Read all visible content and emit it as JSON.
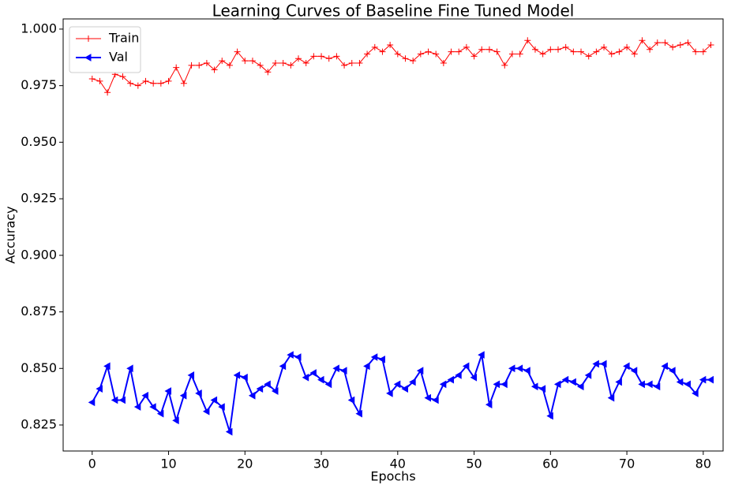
{
  "chart_data": {
    "type": "line",
    "title": "Learning Curves of Baseline Fine Tuned Model",
    "x_label": "Epochs",
    "y_label": "Accuracy",
    "x": [
      0,
      1,
      2,
      3,
      4,
      5,
      6,
      7,
      8,
      9,
      10,
      11,
      12,
      13,
      14,
      15,
      16,
      17,
      18,
      19,
      20,
      21,
      22,
      23,
      24,
      25,
      26,
      27,
      28,
      29,
      30,
      31,
      32,
      33,
      34,
      35,
      36,
      37,
      38,
      39,
      40,
      41,
      42,
      43,
      44,
      45,
      46,
      47,
      48,
      49,
      50,
      51,
      52,
      53,
      54,
      55,
      56,
      57,
      58,
      59,
      60,
      61,
      62,
      63,
      64,
      65,
      66,
      67,
      68,
      69,
      70,
      71,
      72,
      73,
      74,
      75,
      76,
      77,
      78,
      79,
      80,
      81
    ],
    "series": [
      {
        "name": "Train",
        "color": "#ff0000",
        "values": [
          0.978,
          0.977,
          0.972,
          0.98,
          0.979,
          0.976,
          0.975,
          0.977,
          0.976,
          0.976,
          0.977,
          0.983,
          0.976,
          0.984,
          0.984,
          0.985,
          0.982,
          0.986,
          0.984,
          0.99,
          0.986,
          0.986,
          0.984,
          0.981,
          0.985,
          0.985,
          0.984,
          0.987,
          0.985,
          0.988,
          0.988,
          0.987,
          0.988,
          0.984,
          0.985,
          0.985,
          0.989,
          0.992,
          0.99,
          0.993,
          0.989,
          0.987,
          0.986,
          0.989,
          0.99,
          0.989,
          0.985,
          0.99,
          0.99,
          0.992,
          0.988,
          0.991,
          0.991,
          0.99,
          0.984,
          0.989,
          0.989,
          0.995,
          0.991,
          0.989,
          0.991,
          0.991,
          0.992,
          0.99,
          0.99,
          0.988,
          0.99,
          0.992,
          0.989,
          0.99,
          0.992,
          0.989,
          0.995,
          0.991,
          0.994,
          0.994,
          0.992,
          0.993,
          0.994,
          0.99,
          0.99,
          0.993
        ]
      },
      {
        "name": "Val",
        "color": "#0000ff",
        "values": [
          0.835,
          0.841,
          0.851,
          0.836,
          0.836,
          0.85,
          0.833,
          0.838,
          0.833,
          0.83,
          0.84,
          0.827,
          0.838,
          0.847,
          0.839,
          0.831,
          0.836,
          0.833,
          0.822,
          0.847,
          0.846,
          0.838,
          0.841,
          0.843,
          0.84,
          0.851,
          0.856,
          0.855,
          0.846,
          0.848,
          0.845,
          0.843,
          0.85,
          0.849,
          0.836,
          0.83,
          0.851,
          0.855,
          0.854,
          0.839,
          0.843,
          0.841,
          0.844,
          0.849,
          0.837,
          0.836,
          0.843,
          0.845,
          0.847,
          0.851,
          0.846,
          0.856,
          0.834,
          0.843,
          0.843,
          0.85,
          0.85,
          0.849,
          0.842,
          0.841,
          0.829,
          0.843,
          0.845,
          0.844,
          0.842,
          0.847,
          0.852,
          0.852,
          0.837,
          0.844,
          0.851,
          0.849,
          0.843,
          0.843,
          0.842,
          0.851,
          0.849,
          0.844,
          0.843,
          0.839,
          0.845,
          0.845
        ]
      }
    ],
    "xlim": [
      -3.8,
      82.6
    ],
    "ylim": [
      0.8135,
      1.0045
    ],
    "xticks": [
      0,
      10,
      20,
      30,
      40,
      50,
      60,
      70,
      80
    ],
    "yticks": [
      {
        "value": 0.825,
        "label": "0.825"
      },
      {
        "value": 0.85,
        "label": "0.850"
      },
      {
        "value": 0.875,
        "label": "0.875"
      },
      {
        "value": 0.9,
        "label": "0.900"
      },
      {
        "value": 0.925,
        "label": "0.925"
      },
      {
        "value": 0.95,
        "label": "0.950"
      },
      {
        "value": 0.975,
        "label": "0.975"
      },
      {
        "value": 1,
        "label": "1.000"
      }
    ],
    "legend": "upper left",
    "grid": false
  }
}
